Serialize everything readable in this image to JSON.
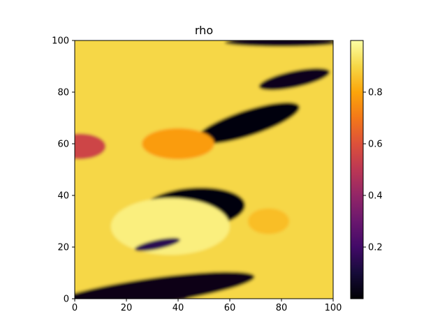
{
  "chart_data": {
    "type": "heatmap",
    "title": "rho",
    "xlabel": "",
    "ylabel": "",
    "xlim": [
      0,
      100
    ],
    "ylim": [
      0,
      100
    ],
    "x_ticks": [
      "0",
      "20",
      "40",
      "60",
      "80",
      "100"
    ],
    "y_ticks": [
      "0",
      "20",
      "40",
      "60",
      "80",
      "100"
    ],
    "colormap": "inferno",
    "colorbar": {
      "range": [
        0.0,
        1.0
      ],
      "ticks": [
        "0.2",
        "0.4",
        "0.6",
        "0.8"
      ]
    },
    "grid": false,
    "regions": [
      {
        "shape": "background",
        "value": 0.9
      },
      {
        "shape": "ellipse",
        "cx": 46,
        "cy": 35,
        "rx": 20,
        "ry": 8,
        "rotate": 4,
        "value": 0.02
      },
      {
        "shape": "ellipse",
        "cx": 37,
        "cy": 28,
        "rx": 23,
        "ry": 11,
        "rotate": 0,
        "value": 0.96
      },
      {
        "shape": "ellipse",
        "cx": 67,
        "cy": 68,
        "rx": 21,
        "ry": 5,
        "rotate": 18,
        "value": 0.02
      },
      {
        "shape": "ellipse",
        "cx": 85,
        "cy": 85,
        "rx": 14,
        "ry": 3.2,
        "rotate": 12,
        "value": 0.05
      },
      {
        "shape": "ellipse",
        "cx": 32,
        "cy": 21,
        "rx": 9,
        "ry": 1.8,
        "rotate": 12,
        "value": 0.15
      },
      {
        "shape": "ellipse",
        "cx": 2,
        "cy": 59,
        "rx": 10,
        "ry": 5,
        "rotate": 0,
        "value": 0.55
      },
      {
        "shape": "ellipse",
        "cx": 80,
        "cy": 99.2,
        "rx": 22,
        "ry": 1.6,
        "rotate": 0,
        "value": 0.05
      },
      {
        "shape": "ellipse",
        "cx": 30,
        "cy": 3,
        "rx": 40,
        "ry": 5,
        "rotate": 8,
        "value": 0.03
      },
      {
        "shape": "ellipse",
        "cx": 40,
        "cy": 60,
        "rx": 14,
        "ry": 6,
        "rotate": 0,
        "value": 0.78
      },
      {
        "shape": "ellipse",
        "cx": 75,
        "cy": 30,
        "rx": 8,
        "ry": 5,
        "rotate": 0,
        "value": 0.85
      }
    ]
  }
}
